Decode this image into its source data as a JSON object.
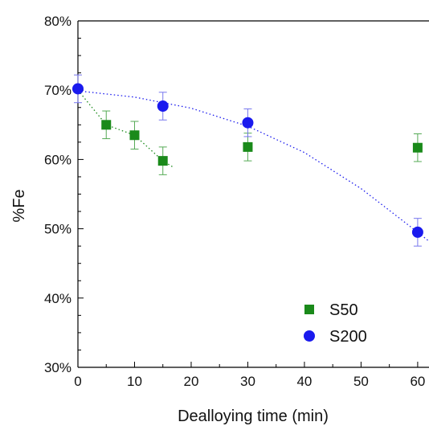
{
  "chart_data": {
    "type": "scatter",
    "title": "",
    "xlabel": "Dealloying time (min)",
    "ylabel": "%Fe",
    "xlim": [
      0,
      62
    ],
    "ylim": [
      30,
      80
    ],
    "x_ticks": [
      0,
      10,
      20,
      30,
      40,
      50,
      60
    ],
    "y_ticks": [
      30,
      40,
      50,
      60,
      70,
      80
    ],
    "y_tick_labels": [
      "30%",
      "40%",
      "50%",
      "60%",
      "70%",
      "80%"
    ],
    "grid": false,
    "legend_position": "bottom-right",
    "series": [
      {
        "name": "S50",
        "marker": "square",
        "color": "#1a8a1a",
        "x": [
          5,
          10,
          15,
          30,
          60
        ],
        "y": [
          65.0,
          63.5,
          59.8,
          61.8,
          61.7
        ],
        "error": [
          2.0,
          2.0,
          2.0,
          2.0,
          2.0
        ],
        "trend_x": [
          0,
          5,
          10,
          15,
          17
        ],
        "trend_y": [
          70.0,
          65.0,
          63.5,
          59.8,
          58.8
        ]
      },
      {
        "name": "S200",
        "marker": "circle",
        "color": "#1a1aee",
        "x": [
          0,
          15,
          30,
          60
        ],
        "y": [
          70.2,
          67.7,
          65.3,
          49.5
        ],
        "error": [
          2.0,
          2.0,
          2.0,
          2.0
        ],
        "trend_x": [
          0,
          10,
          20,
          30,
          40,
          50,
          60,
          62
        ],
        "trend_y": [
          69.9,
          69.0,
          67.4,
          64.8,
          61.0,
          55.8,
          49.5,
          48.2
        ]
      }
    ]
  }
}
